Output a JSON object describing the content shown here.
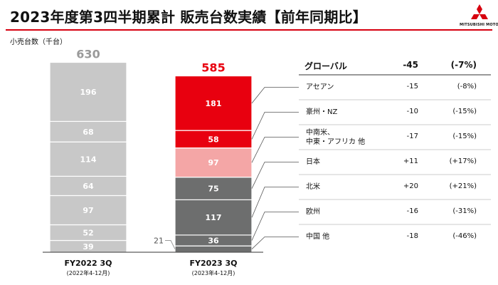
{
  "header": {
    "title": "2023年度第3四半期累計 販売台数実績【前年同期比】",
    "logo_text": "MITSUBISHI MOTORS"
  },
  "colors": {
    "brand_red": "#d7000f",
    "bar_2022": "#c8c8c8",
    "bar_2023_red": "#e8000f",
    "bar_2023_pink": "#f4a6a6",
    "bar_2023_dark": "#6d6e6e"
  },
  "chart_data": {
    "type": "bar",
    "stacked": true,
    "ylabel": "小売台数（千台）",
    "categories": [
      "FY2022 3Q",
      "FY2023 3Q"
    ],
    "category_subtitles": [
      "(2022年4-12月)",
      "(2023年4-12月)"
    ],
    "totals": [
      630,
      585
    ],
    "segments_bottom_to_top": [
      "中国 他",
      "欧州",
      "北米",
      "日本",
      "中南米、中東・アフリカ 他",
      "豪州・NZ",
      "アセアン"
    ],
    "values": [
      [
        39,
        52,
        97,
        64,
        114,
        68,
        196
      ],
      [
        21,
        36,
        117,
        75,
        97,
        58,
        181
      ]
    ],
    "annotations": [
      {
        "category": "FY2023 3Q",
        "segment": "中国 他",
        "label": "21"
      }
    ]
  },
  "breakdown": {
    "global": {
      "name": "グローバル",
      "change": "-45",
      "pct": "(-7%)"
    },
    "regions": [
      {
        "name": "アセアン",
        "change": "-15",
        "pct": "(-8%)"
      },
      {
        "name": "豪州・NZ",
        "change": "-10",
        "pct": "(-15%)"
      },
      {
        "name": "中南米、\n中東・アフリカ 他",
        "change": "-17",
        "pct": "(-15%)"
      },
      {
        "name": "日本",
        "change": "+11",
        "pct": "(+17%)"
      },
      {
        "name": "北米",
        "change": "+20",
        "pct": "(+21%)"
      },
      {
        "name": "欧州",
        "change": "-16",
        "pct": "(-31%)"
      },
      {
        "name": "中国 他",
        "change": "-18",
        "pct": "(-46%)"
      }
    ]
  }
}
